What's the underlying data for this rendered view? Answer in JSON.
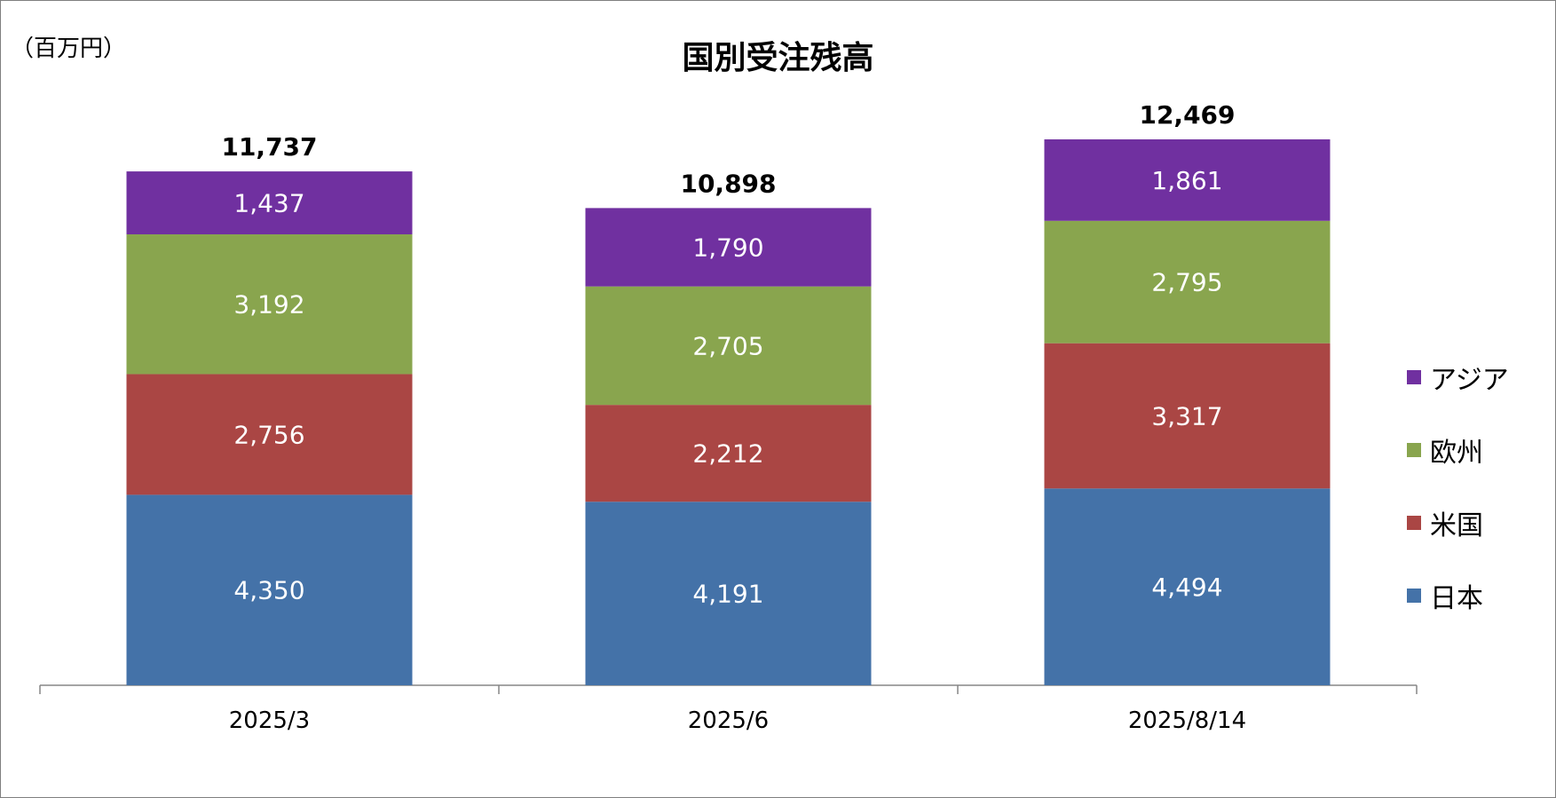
{
  "chart_data": {
    "type": "bar",
    "stacked": true,
    "title": "国別受注残高",
    "unit_label": "（百万円）",
    "categories": [
      "2025/3",
      "2025/6",
      "2025/8/14"
    ],
    "series": [
      {
        "name": "日本",
        "color": "#4472a8",
        "values": [
          4350,
          4191,
          4494
        ],
        "labels": [
          "4,350",
          "4,191",
          "4,494"
        ]
      },
      {
        "name": "米国",
        "color": "#aa4644",
        "values": [
          2756,
          2212,
          3317
        ],
        "labels": [
          "2,756",
          "2,212",
          "3,317"
        ]
      },
      {
        "name": "欧州",
        "color": "#89a54e",
        "values": [
          3192,
          2705,
          2795
        ],
        "labels": [
          "3,192",
          "2,705",
          "2,795"
        ]
      },
      {
        "name": "アジア",
        "color": "#7030a0",
        "values": [
          1437,
          1790,
          1861
        ],
        "labels": [
          "1,437",
          "1,790",
          "1,861"
        ]
      }
    ],
    "totals": [
      11737,
      10898,
      12469
    ],
    "total_labels": [
      "11,737",
      "10,898",
      "12,469"
    ],
    "legend_position": "right",
    "legend_order": [
      "アジア",
      "欧州",
      "米国",
      "日本"
    ],
    "grid": false
  }
}
